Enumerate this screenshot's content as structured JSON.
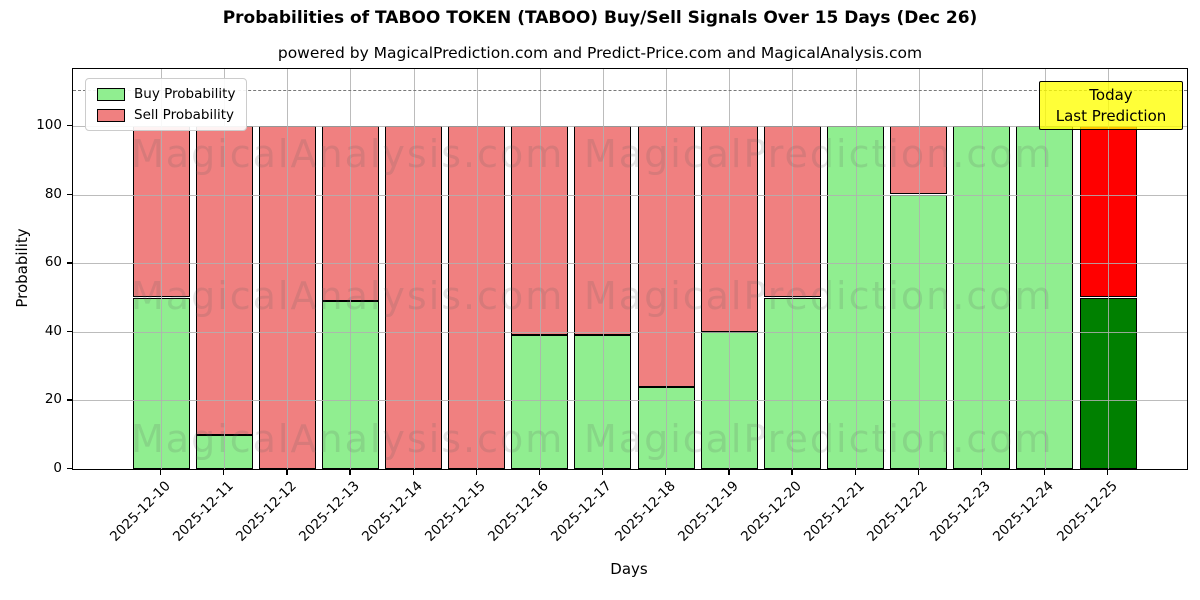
{
  "title": "Probabilities of TABOO TOKEN (TABOO) Buy/Sell Signals Over 15 Days (Dec 26)",
  "subtitle": "powered by MagicalPrediction.com and Predict-Price.com and MagicalAnalysis.com",
  "annotation": {
    "line1": "Today",
    "line2": "Last Prediction"
  },
  "chart_data": {
    "type": "bar",
    "stacked": true,
    "title": "Probabilities of TABOO TOKEN (TABOO) Buy/Sell Signals Over 15 Days (Dec 26)",
    "subtitle": "powered by MagicalPrediction.com and Predict-Price.com and MagicalAnalysis.com",
    "xlabel": "Days",
    "ylabel": "Probability",
    "ylim": [
      0,
      116.6
    ],
    "yticks": [
      0,
      20,
      40,
      60,
      80,
      100
    ],
    "grid": true,
    "legend_position": "upper-left",
    "dashed_line_y": 110.5,
    "categories": [
      "2025-12-10",
      "2025-12-11",
      "2025-12-12",
      "2025-12-13",
      "2025-12-14",
      "2025-12-15",
      "2025-12-16",
      "2025-12-17",
      "2025-12-18",
      "2025-12-19",
      "2025-12-20",
      "2025-12-21",
      "2025-12-22",
      "2025-12-23",
      "2025-12-24",
      "2025-12-25"
    ],
    "series": [
      {
        "name": "Buy Probability",
        "color": "#90ee90",
        "values": [
          50,
          10,
          0,
          49,
          0,
          0,
          39,
          39,
          24,
          40,
          50,
          100,
          80,
          100,
          100,
          50
        ]
      },
      {
        "name": "Sell Probability",
        "color": "#f08080",
        "values": [
          50,
          90,
          100,
          51,
          100,
          100,
          61,
          61,
          76,
          60,
          50,
          0,
          20,
          0,
          0,
          50
        ]
      }
    ],
    "today": {
      "index": 15,
      "label_line1": "Today",
      "label_line2": "Last Prediction",
      "buy_color": "#008000",
      "sell_color": "#ff0000"
    },
    "colors": {
      "grid": "#b0b0b0",
      "dashed_line": "#787878",
      "annotation_bg": "#ffff00",
      "bar_edge": "#000000",
      "buy": "#90ee90",
      "sell": "#f08080"
    },
    "watermarks": [
      "MagicalAnalysis.com",
      "MagicalPrediction.com"
    ]
  }
}
